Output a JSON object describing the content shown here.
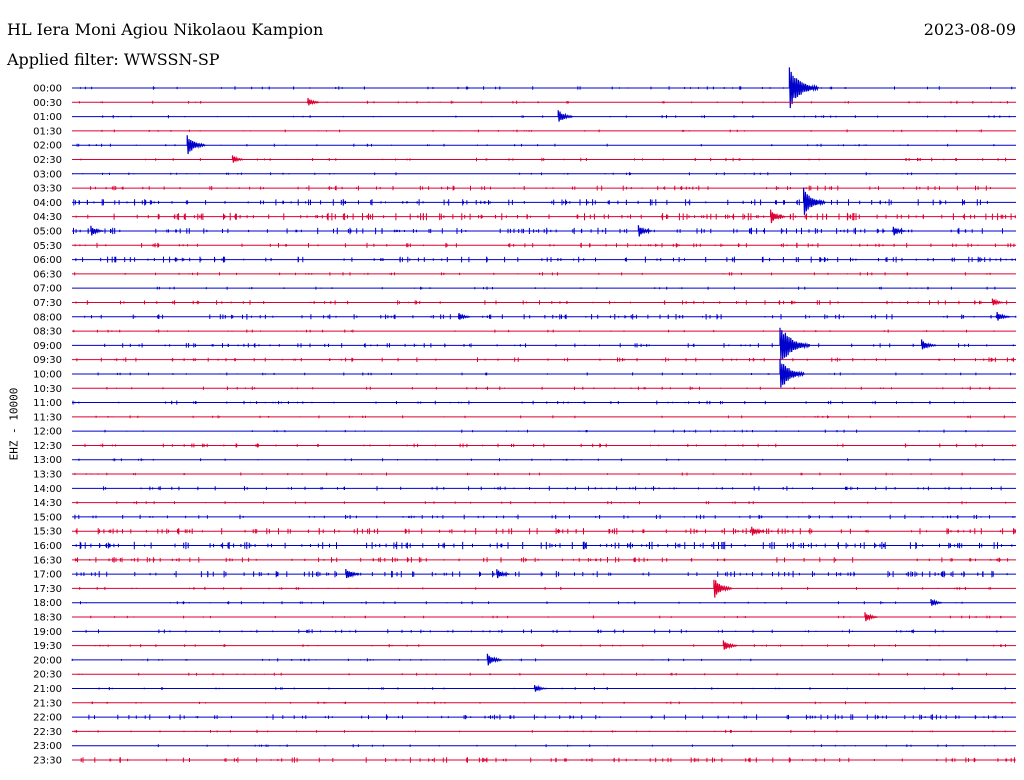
{
  "header": {
    "station": "HL Iera Moni Agiou Nikolaou Kampion",
    "date": "2023-08-09",
    "filter_label": "Applied filter: WWSSN-SP"
  },
  "chart_data": {
    "type": "line",
    "title": "HL Iera Moni Agiou Nikolaou Kampion",
    "ylabel": "EHZ - 10000",
    "colors": [
      "#0000cc",
      "#dd0033"
    ],
    "rows": [
      {
        "label": "00:00",
        "activity": 0.15,
        "events": [
          [
            0.76,
            1.0
          ]
        ]
      },
      {
        "label": "00:30",
        "activity": 0.1,
        "events": [
          [
            0.25,
            0.2
          ]
        ]
      },
      {
        "label": "01:00",
        "activity": 0.1,
        "events": [
          [
            0.515,
            0.35
          ]
        ]
      },
      {
        "label": "01:30",
        "activity": 0.08,
        "events": []
      },
      {
        "label": "02:00",
        "activity": 0.1,
        "events": [
          [
            0.122,
            0.5
          ]
        ]
      },
      {
        "label": "02:30",
        "activity": 0.15,
        "events": [
          [
            0.17,
            0.2
          ]
        ]
      },
      {
        "label": "03:00",
        "activity": 0.12,
        "events": []
      },
      {
        "label": "03:30",
        "activity": 0.3,
        "events": []
      },
      {
        "label": "04:00",
        "activity": 0.45,
        "events": [
          [
            0.775,
            0.7
          ]
        ]
      },
      {
        "label": "04:30",
        "activity": 0.55,
        "events": [
          [
            0.74,
            0.35
          ]
        ]
      },
      {
        "label": "05:00",
        "activity": 0.45,
        "events": [
          [
            0.02,
            0.25
          ],
          [
            0.6,
            0.3
          ],
          [
            0.87,
            0.25
          ]
        ]
      },
      {
        "label": "05:30",
        "activity": 0.3,
        "events": []
      },
      {
        "label": "06:00",
        "activity": 0.4,
        "events": []
      },
      {
        "label": "06:30",
        "activity": 0.12,
        "events": []
      },
      {
        "label": "07:00",
        "activity": 0.1,
        "events": []
      },
      {
        "label": "07:30",
        "activity": 0.25,
        "events": [
          [
            0.975,
            0.2
          ]
        ]
      },
      {
        "label": "08:00",
        "activity": 0.35,
        "events": [
          [
            0.41,
            0.2
          ],
          [
            0.98,
            0.25
          ]
        ]
      },
      {
        "label": "08:30",
        "activity": 0.1,
        "events": []
      },
      {
        "label": "09:00",
        "activity": 0.25,
        "events": [
          [
            0.75,
            1.0
          ],
          [
            0.9,
            0.3
          ]
        ]
      },
      {
        "label": "09:30",
        "activity": 0.25,
        "events": []
      },
      {
        "label": "10:00",
        "activity": 0.1,
        "events": [
          [
            0.75,
            0.8
          ]
        ]
      },
      {
        "label": "10:30",
        "activity": 0.15,
        "events": []
      },
      {
        "label": "11:00",
        "activity": 0.2,
        "events": []
      },
      {
        "label": "11:30",
        "activity": 0.08,
        "events": []
      },
      {
        "label": "12:00",
        "activity": 0.1,
        "events": []
      },
      {
        "label": "12:30",
        "activity": 0.2,
        "events": []
      },
      {
        "label": "13:00",
        "activity": 0.08,
        "events": []
      },
      {
        "label": "13:30",
        "activity": 0.1,
        "events": []
      },
      {
        "label": "14:00",
        "activity": 0.25,
        "events": []
      },
      {
        "label": "14:30",
        "activity": 0.1,
        "events": []
      },
      {
        "label": "15:00",
        "activity": 0.25,
        "events": []
      },
      {
        "label": "15:30",
        "activity": 0.45,
        "events": [
          [
            0.72,
            0.25
          ]
        ]
      },
      {
        "label": "16:00",
        "activity": 0.55,
        "events": []
      },
      {
        "label": "16:30",
        "activity": 0.35,
        "events": []
      },
      {
        "label": "17:00",
        "activity": 0.45,
        "events": [
          [
            0.29,
            0.3
          ],
          [
            0.45,
            0.25
          ]
        ]
      },
      {
        "label": "17:30",
        "activity": 0.1,
        "events": [
          [
            0.68,
            0.5
          ]
        ]
      },
      {
        "label": "18:00",
        "activity": 0.1,
        "events": [
          [
            0.91,
            0.2
          ]
        ]
      },
      {
        "label": "18:30",
        "activity": 0.1,
        "events": [
          [
            0.84,
            0.25
          ]
        ]
      },
      {
        "label": "19:00",
        "activity": 0.2,
        "events": []
      },
      {
        "label": "19:30",
        "activity": 0.1,
        "events": [
          [
            0.69,
            0.3
          ]
        ]
      },
      {
        "label": "20:00",
        "activity": 0.1,
        "events": [
          [
            0.44,
            0.35
          ]
        ]
      },
      {
        "label": "20:30",
        "activity": 0.08,
        "events": []
      },
      {
        "label": "21:00",
        "activity": 0.1,
        "events": [
          [
            0.49,
            0.2
          ]
        ]
      },
      {
        "label": "21:30",
        "activity": 0.08,
        "events": []
      },
      {
        "label": "22:00",
        "activity": 0.35,
        "events": []
      },
      {
        "label": "22:30",
        "activity": 0.1,
        "events": []
      },
      {
        "label": "23:00",
        "activity": 0.08,
        "events": []
      },
      {
        "label": "23:30",
        "activity": 0.35,
        "events": []
      }
    ]
  }
}
